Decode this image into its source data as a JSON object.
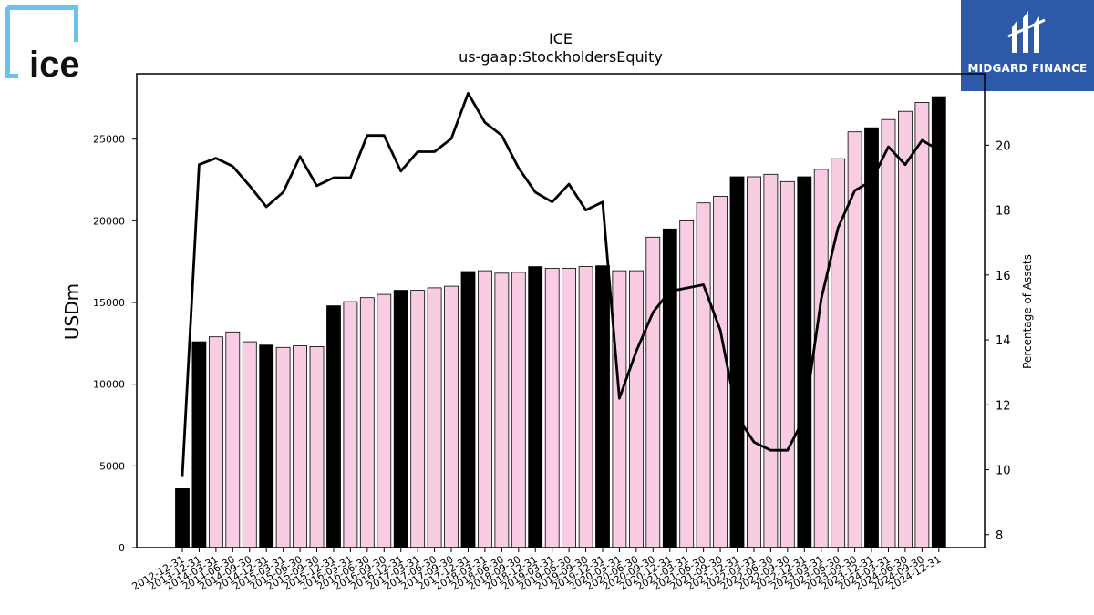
{
  "logos": {
    "left_text": "ice",
    "right_text": "MIDGARD FINANCE"
  },
  "chart_data": {
    "type": "bar",
    "title": "ICE",
    "subtitle": "us-gaap:StockholdersEquity",
    "ylabel": "USDm",
    "y2label": "Percentage of Assets",
    "ylim": [
      0,
      29000
    ],
    "y2lim": [
      7.6,
      22.2
    ],
    "yticks": [
      0,
      5000,
      10000,
      15000,
      20000,
      25000
    ],
    "y2ticks": [
      8,
      10,
      12,
      14,
      16,
      18,
      20
    ],
    "categories": [
      "2012-12-31",
      "2013-12-31",
      "2014-03-31",
      "2014-06-30",
      "2014-09-30",
      "2014-12-31",
      "2015-03-31",
      "2015-06-30",
      "2015-09-30",
      "2015-12-31",
      "2016-03-31",
      "2016-06-30",
      "2016-09-30",
      "2016-12-31",
      "2017-03-31",
      "2017-06-30",
      "2017-09-30",
      "2017-12-31",
      "2018-03-31",
      "2018-06-30",
      "2018-09-30",
      "2018-12-31",
      "2019-03-31",
      "2019-06-30",
      "2019-09-30",
      "2019-12-31",
      "2020-03-31",
      "2020-06-30",
      "2020-09-30",
      "2020-12-31",
      "2021-03-31",
      "2021-06-30",
      "2021-09-30",
      "2021-12-31",
      "2022-03-31",
      "2022-06-30",
      "2022-09-30",
      "2022-12-31",
      "2023-03-31",
      "2023-06-30",
      "2023-09-30",
      "2023-12-31",
      "2024-03-31",
      "2024-06-30",
      "2024-09-30",
      "2024-12-31"
    ],
    "series": [
      {
        "values": [
          3600,
          12600,
          12900,
          13200,
          12600,
          12400,
          12250,
          12350,
          12300,
          14800,
          15050,
          15300,
          15500,
          15750,
          15750,
          15900,
          16000,
          16900,
          16950,
          16800,
          16850,
          17200,
          17100,
          17100,
          17200,
          17250,
          16950,
          16950,
          19000,
          19500,
          20000,
          21100,
          21500,
          22700,
          22700,
          22850,
          22400,
          22700,
          23150,
          23800,
          25450,
          25700,
          26200,
          26700,
          27250,
          27600
        ],
        "annual": [
          true,
          true,
          false,
          false,
          false,
          true,
          false,
          false,
          false,
          true,
          false,
          false,
          false,
          true,
          false,
          false,
          false,
          true,
          false,
          false,
          false,
          true,
          false,
          false,
          false,
          true,
          false,
          false,
          false,
          true,
          false,
          false,
          false,
          true,
          false,
          false,
          false,
          true,
          false,
          false,
          false,
          true,
          false,
          false,
          false,
          true
        ],
        "colors": {
          "annual": "#000000",
          "quarter": "#f8cce2"
        }
      },
      {
        "type": "line",
        "axis": "right",
        "values": [
          9.8,
          19.4,
          19.6,
          19.35,
          18.75,
          18.1,
          18.55,
          19.65,
          18.75,
          19.0,
          19.0,
          20.3,
          20.3,
          19.2,
          19.8,
          19.8,
          20.2,
          21.6,
          20.7,
          20.3,
          19.3,
          18.55,
          18.25,
          18.8,
          18.0,
          18.25,
          12.2,
          13.65,
          14.85,
          15.5,
          15.6,
          15.7,
          14.3,
          11.65,
          10.85,
          10.6,
          10.6,
          11.6,
          15.25,
          17.45,
          18.6,
          18.9,
          19.95,
          19.4,
          20.15,
          19.85
        ],
        "color": "#000000"
      }
    ]
  }
}
